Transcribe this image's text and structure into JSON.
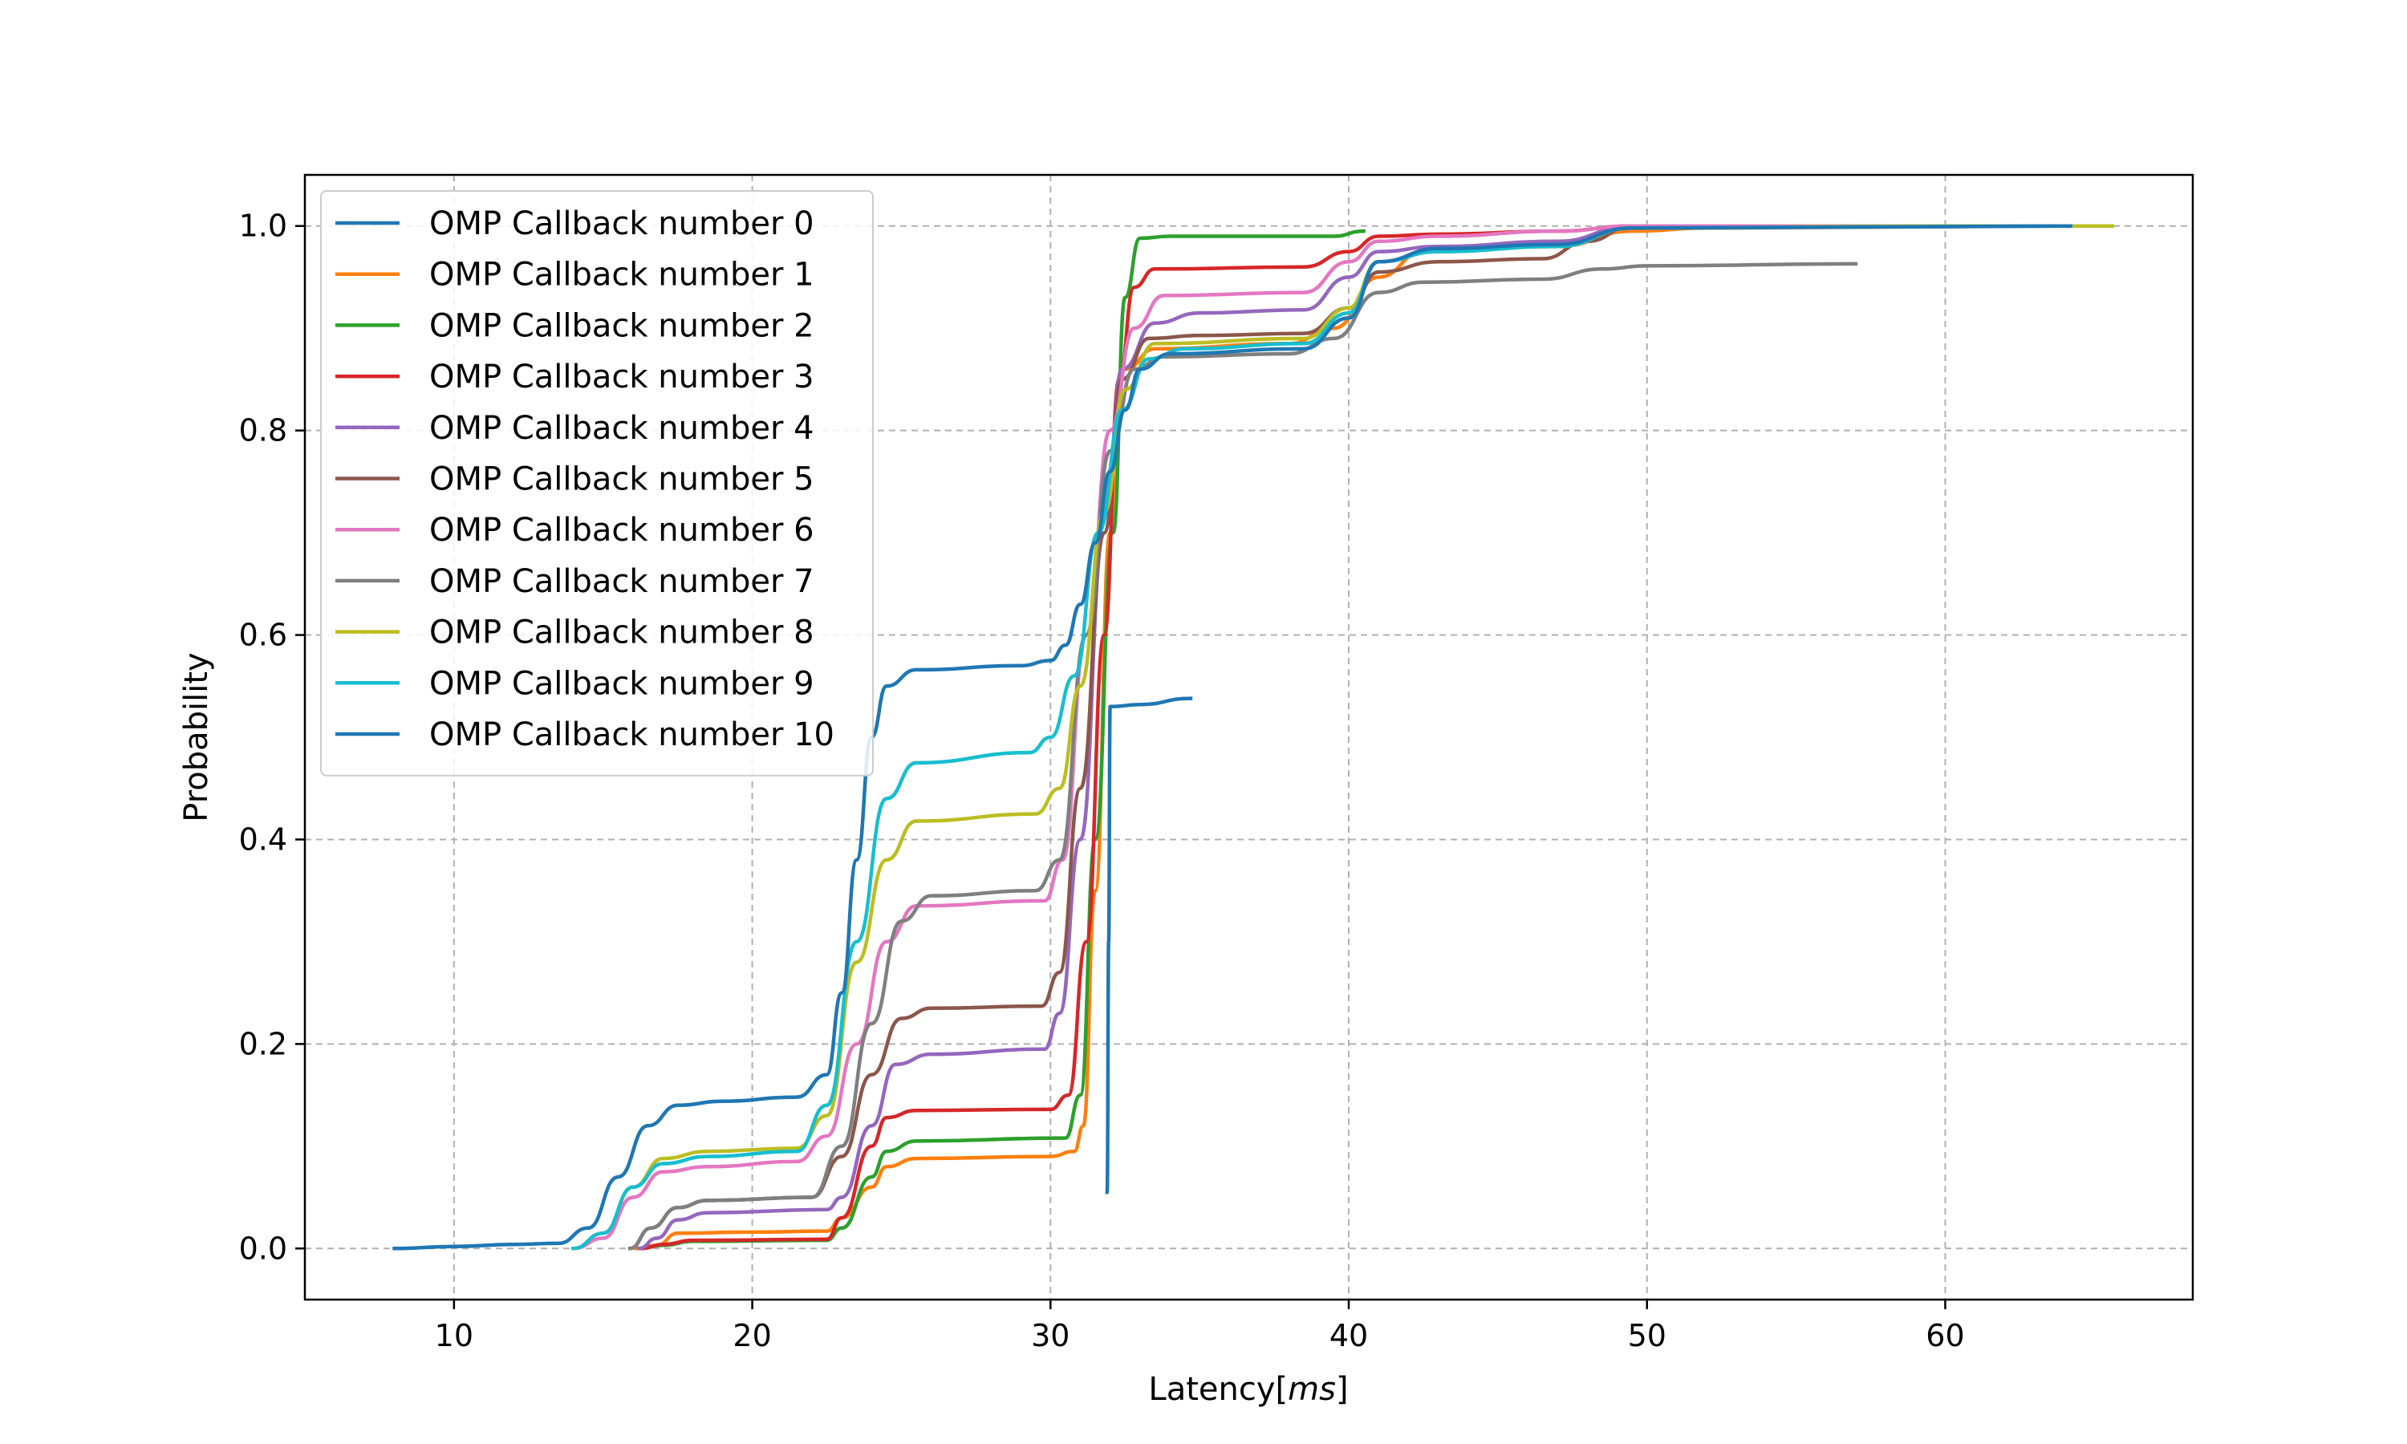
{
  "chart_data": {
    "type": "line",
    "title": "",
    "xlabel_main": "Latency",
    "xlabel_unit": "ms",
    "ylabel": "Probability",
    "xlim": [
      5.0,
      68.3
    ],
    "ylim": [
      -0.05,
      1.05
    ],
    "xticks": [
      10,
      20,
      30,
      40,
      50,
      60
    ],
    "yticks": [
      0.0,
      0.2,
      0.4,
      0.6,
      0.8,
      1.0
    ],
    "xtick_labels": [
      "10",
      "20",
      "30",
      "40",
      "50",
      "60"
    ],
    "ytick_labels": [
      "0.0",
      "0.2",
      "0.4",
      "0.6",
      "0.8",
      "1.0"
    ],
    "grid": true,
    "legend_position": "top-left",
    "series": [
      {
        "name": "OMP Callback number 0",
        "color": "#1f77b4",
        "data": [
          [
            31.9,
            0.055
          ],
          [
            31.95,
            0.3
          ],
          [
            32.0,
            0.53
          ],
          [
            33.0,
            0.532
          ],
          [
            34.7,
            0.538
          ]
        ]
      },
      {
        "name": "OMP Callback number 1",
        "color": "#ff7f0e",
        "data": [
          [
            16.1,
            0.0
          ],
          [
            16.8,
            0.003
          ],
          [
            17.5,
            0.015
          ],
          [
            20.0,
            0.016
          ],
          [
            22.5,
            0.017
          ],
          [
            23.0,
            0.03
          ],
          [
            24.0,
            0.06
          ],
          [
            24.5,
            0.08
          ],
          [
            25.5,
            0.088
          ],
          [
            30.0,
            0.09
          ],
          [
            30.8,
            0.095
          ],
          [
            31.1,
            0.12
          ],
          [
            31.5,
            0.35
          ],
          [
            32.0,
            0.7
          ],
          [
            32.5,
            0.86
          ],
          [
            33.5,
            0.88
          ],
          [
            38.0,
            0.885
          ],
          [
            39.5,
            0.9
          ],
          [
            41.0,
            0.95
          ],
          [
            42.5,
            0.975
          ],
          [
            47.0,
            0.98
          ],
          [
            49.5,
            0.995
          ],
          [
            52.0,
            0.998
          ],
          [
            64.2,
            1.0
          ]
        ]
      },
      {
        "name": "OMP Callback number 2",
        "color": "#2ca02c",
        "data": [
          [
            16.2,
            0.0
          ],
          [
            17.0,
            0.003
          ],
          [
            18.0,
            0.007
          ],
          [
            22.5,
            0.008
          ],
          [
            23.0,
            0.02
          ],
          [
            24.0,
            0.07
          ],
          [
            24.5,
            0.095
          ],
          [
            25.5,
            0.105
          ],
          [
            30.5,
            0.108
          ],
          [
            31.0,
            0.15
          ],
          [
            31.5,
            0.4
          ],
          [
            32.1,
            0.7
          ],
          [
            32.5,
            0.93
          ],
          [
            33.0,
            0.988
          ],
          [
            34.0,
            0.99
          ],
          [
            39.5,
            0.99
          ],
          [
            40.5,
            0.995
          ]
        ]
      },
      {
        "name": "OMP Callback number 3",
        "color": "#d62728",
        "data": [
          [
            16.3,
            0.0
          ],
          [
            17.0,
            0.004
          ],
          [
            18.0,
            0.008
          ],
          [
            22.5,
            0.009
          ],
          [
            23.0,
            0.03
          ],
          [
            24.0,
            0.1
          ],
          [
            24.5,
            0.128
          ],
          [
            25.5,
            0.135
          ],
          [
            30.0,
            0.136
          ],
          [
            30.6,
            0.15
          ],
          [
            31.2,
            0.3
          ],
          [
            31.8,
            0.6
          ],
          [
            32.3,
            0.85
          ],
          [
            32.8,
            0.94
          ],
          [
            33.5,
            0.958
          ],
          [
            38.5,
            0.96
          ],
          [
            40.0,
            0.975
          ],
          [
            41.0,
            0.99
          ],
          [
            43.0,
            0.992
          ],
          [
            47.0,
            0.995
          ],
          [
            49.5,
            1.0
          ],
          [
            64.2,
            1.0
          ]
        ]
      },
      {
        "name": "OMP Callback number 4",
        "color": "#9467bd",
        "data": [
          [
            16.2,
            0.0
          ],
          [
            16.8,
            0.01
          ],
          [
            17.5,
            0.028
          ],
          [
            18.5,
            0.035
          ],
          [
            22.5,
            0.038
          ],
          [
            23.0,
            0.05
          ],
          [
            24.0,
            0.12
          ],
          [
            24.8,
            0.18
          ],
          [
            26.0,
            0.19
          ],
          [
            29.8,
            0.195
          ],
          [
            30.3,
            0.23
          ],
          [
            31.0,
            0.4
          ],
          [
            31.8,
            0.7
          ],
          [
            32.4,
            0.86
          ],
          [
            33.5,
            0.905
          ],
          [
            35.0,
            0.915
          ],
          [
            38.5,
            0.918
          ],
          [
            40.0,
            0.95
          ],
          [
            41.0,
            0.975
          ],
          [
            43.0,
            0.98
          ],
          [
            47.0,
            0.985
          ],
          [
            49.5,
            1.0
          ],
          [
            64.2,
            1.0
          ]
        ]
      },
      {
        "name": "OMP Callback number 5",
        "color": "#8c564b",
        "data": [
          [
            15.9,
            0.0
          ],
          [
            16.6,
            0.02
          ],
          [
            17.5,
            0.04
          ],
          [
            18.5,
            0.047
          ],
          [
            22.0,
            0.05
          ],
          [
            23.0,
            0.09
          ],
          [
            24.0,
            0.17
          ],
          [
            25.0,
            0.225
          ],
          [
            26.0,
            0.235
          ],
          [
            29.7,
            0.237
          ],
          [
            30.3,
            0.27
          ],
          [
            31.0,
            0.45
          ],
          [
            31.8,
            0.7
          ],
          [
            32.4,
            0.85
          ],
          [
            33.3,
            0.89
          ],
          [
            35.0,
            0.893
          ],
          [
            38.5,
            0.895
          ],
          [
            40.0,
            0.92
          ],
          [
            41.0,
            0.955
          ],
          [
            43.0,
            0.965
          ],
          [
            46.5,
            0.968
          ],
          [
            48.0,
            0.985
          ],
          [
            49.5,
            1.0
          ],
          [
            64.2,
            1.0
          ]
        ]
      },
      {
        "name": "OMP Callback number 6",
        "color": "#e377c2",
        "data": [
          [
            14.0,
            0.0
          ],
          [
            15.0,
            0.01
          ],
          [
            16.0,
            0.05
          ],
          [
            17.0,
            0.075
          ],
          [
            18.5,
            0.08
          ],
          [
            21.5,
            0.085
          ],
          [
            22.5,
            0.11
          ],
          [
            23.5,
            0.2
          ],
          [
            24.5,
            0.3
          ],
          [
            25.5,
            0.335
          ],
          [
            29.8,
            0.34
          ],
          [
            30.4,
            0.38
          ],
          [
            31.2,
            0.6
          ],
          [
            32.0,
            0.8
          ],
          [
            32.8,
            0.9
          ],
          [
            33.8,
            0.932
          ],
          [
            38.5,
            0.935
          ],
          [
            40.0,
            0.965
          ],
          [
            41.0,
            0.985
          ],
          [
            43.0,
            0.99
          ],
          [
            47.0,
            0.995
          ],
          [
            49.5,
            1.0
          ],
          [
            64.2,
            1.0
          ]
        ]
      },
      {
        "name": "OMP Callback number 7",
        "color": "#7f7f7f",
        "data": [
          [
            15.9,
            0.0
          ],
          [
            16.6,
            0.02
          ],
          [
            17.5,
            0.04
          ],
          [
            18.5,
            0.047
          ],
          [
            22.0,
            0.05
          ],
          [
            23.0,
            0.1
          ],
          [
            24.0,
            0.22
          ],
          [
            25.0,
            0.32
          ],
          [
            26.0,
            0.345
          ],
          [
            29.5,
            0.35
          ],
          [
            30.3,
            0.38
          ],
          [
            31.2,
            0.6
          ],
          [
            32.0,
            0.78
          ],
          [
            32.8,
            0.86
          ],
          [
            33.8,
            0.872
          ],
          [
            38.0,
            0.875
          ],
          [
            39.5,
            0.89
          ],
          [
            41.0,
            0.935
          ],
          [
            42.5,
            0.945
          ],
          [
            46.5,
            0.948
          ],
          [
            48.5,
            0.958
          ],
          [
            50.0,
            0.961
          ],
          [
            57.0,
            0.963
          ]
        ]
      },
      {
        "name": "OMP Callback number 8",
        "color": "#bcbd22",
        "data": [
          [
            14.0,
            0.0
          ],
          [
            15.0,
            0.015
          ],
          [
            16.0,
            0.06
          ],
          [
            17.0,
            0.088
          ],
          [
            18.5,
            0.095
          ],
          [
            21.5,
            0.098
          ],
          [
            22.5,
            0.13
          ],
          [
            23.5,
            0.28
          ],
          [
            24.5,
            0.38
          ],
          [
            25.5,
            0.418
          ],
          [
            29.5,
            0.425
          ],
          [
            30.3,
            0.45
          ],
          [
            31.0,
            0.55
          ],
          [
            31.8,
            0.72
          ],
          [
            32.5,
            0.84
          ],
          [
            33.5,
            0.885
          ],
          [
            38.5,
            0.89
          ],
          [
            40.0,
            0.92
          ],
          [
            41.0,
            0.965
          ],
          [
            43.0,
            0.975
          ],
          [
            47.0,
            0.98
          ],
          [
            49.5,
            0.998
          ],
          [
            60.0,
            1.0
          ],
          [
            65.6,
            1.0
          ]
        ]
      },
      {
        "name": "OMP Callback number 9",
        "color": "#17becf",
        "data": [
          [
            14.0,
            0.0
          ],
          [
            15.0,
            0.015
          ],
          [
            16.0,
            0.06
          ],
          [
            17.0,
            0.083
          ],
          [
            18.5,
            0.09
          ],
          [
            21.5,
            0.095
          ],
          [
            22.5,
            0.14
          ],
          [
            23.5,
            0.3
          ],
          [
            24.5,
            0.44
          ],
          [
            25.5,
            0.475
          ],
          [
            29.3,
            0.485
          ],
          [
            30.0,
            0.5
          ],
          [
            30.8,
            0.56
          ],
          [
            31.6,
            0.7
          ],
          [
            32.4,
            0.82
          ],
          [
            33.3,
            0.87
          ],
          [
            34.5,
            0.88
          ],
          [
            38.5,
            0.885
          ],
          [
            40.0,
            0.915
          ],
          [
            41.0,
            0.965
          ],
          [
            43.0,
            0.975
          ],
          [
            47.0,
            0.98
          ],
          [
            49.5,
            0.998
          ],
          [
            64.2,
            1.0
          ]
        ]
      },
      {
        "name": "OMP Callback number 10",
        "color": "#1f77b4",
        "data": [
          [
            8.0,
            0.0
          ],
          [
            10.0,
            0.002
          ],
          [
            12.0,
            0.004
          ],
          [
            13.5,
            0.005
          ],
          [
            14.5,
            0.02
          ],
          [
            15.5,
            0.07
          ],
          [
            16.5,
            0.12
          ],
          [
            17.5,
            0.14
          ],
          [
            19.0,
            0.144
          ],
          [
            21.5,
            0.148
          ],
          [
            22.5,
            0.17
          ],
          [
            23.0,
            0.25
          ],
          [
            23.5,
            0.38
          ],
          [
            24.0,
            0.5
          ],
          [
            24.5,
            0.55
          ],
          [
            25.5,
            0.566
          ],
          [
            29.0,
            0.57
          ],
          [
            30.0,
            0.575
          ],
          [
            30.5,
            0.59
          ],
          [
            31.0,
            0.63
          ],
          [
            31.5,
            0.69
          ],
          [
            32.0,
            0.76
          ],
          [
            32.5,
            0.82
          ],
          [
            33.0,
            0.86
          ],
          [
            34.0,
            0.875
          ],
          [
            38.5,
            0.88
          ],
          [
            40.0,
            0.91
          ],
          [
            41.0,
            0.965
          ],
          [
            43.0,
            0.978
          ],
          [
            47.0,
            0.982
          ],
          [
            49.5,
            0.998
          ],
          [
            64.2,
            1.0
          ]
        ]
      }
    ]
  }
}
